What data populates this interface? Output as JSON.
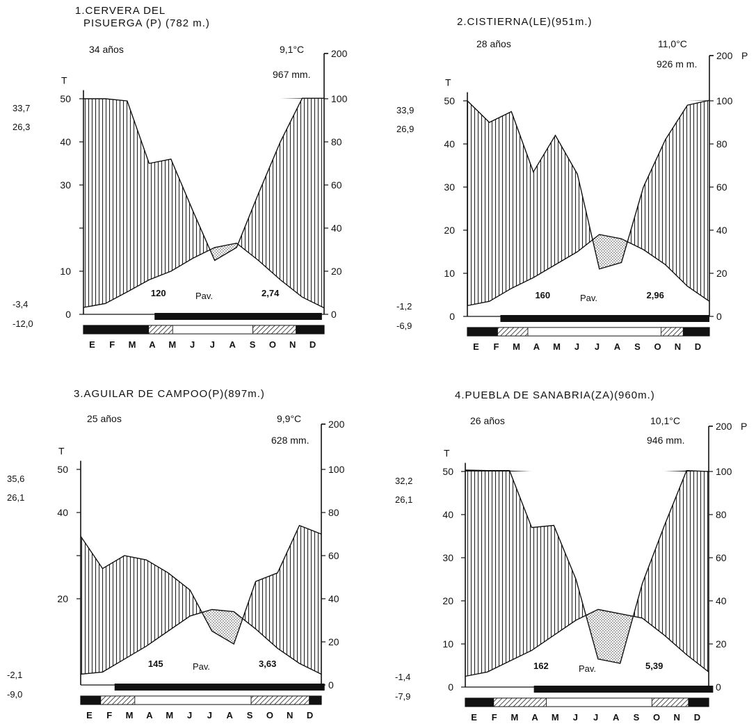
{
  "chart_data": [
    {
      "type": "area",
      "title": "1.CERVERA DEL PISUERGA (P) (782 m.)",
      "title_lines": [
        "1.CERVERA DEL",
        "PISUERGA (P) (782 m.)"
      ],
      "years": "34 años",
      "mean_temp": "9,1°C",
      "annual_precip": "967 mm.",
      "side_values": [
        "33,7",
        "26,3",
        "-3,4",
        "-12,0"
      ],
      "left_axis": {
        "label": "T",
        "ticks": [
          "0",
          "10",
          "",
          "30",
          "40",
          "50"
        ]
      },
      "right_axis": {
        "ticks": [
          "0",
          "20",
          "40",
          "60",
          "80",
          "100",
          "200"
        ]
      },
      "x": [
        "E",
        "F",
        "M",
        "A",
        "M",
        "J",
        "J",
        "A",
        "S",
        "O",
        "N",
        "D"
      ],
      "temperature": [
        1.6,
        2.5,
        5.2,
        8.0,
        10.0,
        13.0,
        15.5,
        16.5,
        12.5,
        8.0,
        4.0,
        1.5
      ],
      "precipitation": [
        100,
        100,
        99,
        70,
        72,
        48,
        25,
        31,
        56,
        80,
        101,
        101
      ],
      "pav_label": "Pav.",
      "pav_values": [
        "120",
        "2,74"
      ],
      "frost_bar": [
        3.25,
        10.9
      ],
      "months_bar": [
        {
          "start": 0,
          "end": 3.25,
          "fill": "black"
        },
        {
          "start": 3.25,
          "end": 4.45,
          "fill": "hatch"
        },
        {
          "start": 4.45,
          "end": 8.45,
          "fill": "white"
        },
        {
          "start": 8.45,
          "end": 10.6,
          "fill": "hatch"
        },
        {
          "start": 10.6,
          "end": 12,
          "fill": "black"
        }
      ]
    },
    {
      "type": "area",
      "title": "2.CISTIERNA (LE) (951 m.)",
      "title_lines": [
        "2.CISTIERNA(LE)(951m.)"
      ],
      "years": "28 años",
      "mean_temp": "11,0°C",
      "annual_precip": "926 m m.",
      "side_values": [
        "33,9",
        "26,9",
        "-1,2",
        "-6,9"
      ],
      "left_axis": {
        "label": "T",
        "ticks": [
          "0",
          "10",
          "20",
          "30",
          "40",
          "50"
        ]
      },
      "right_axis": {
        "label": "P",
        "ticks": [
          "0",
          "20",
          "40",
          "60",
          "80",
          "100",
          "200"
        ]
      },
      "x": [
        "E",
        "F",
        "M",
        "A",
        "M",
        "J",
        "J",
        "A",
        "S",
        "O",
        "N",
        "D"
      ],
      "temperature": [
        2.5,
        3.5,
        6.5,
        9.0,
        12.0,
        15.0,
        19.0,
        18.0,
        15.5,
        12.0,
        7.0,
        3.5
      ],
      "precipitation": [
        100,
        90,
        95,
        67,
        84,
        66,
        22,
        25,
        60,
        82,
        98,
        101
      ],
      "pav_label": "Pav.",
      "pav_values": [
        "160",
        "2,96"
      ],
      "frost_bar": [
        1.5,
        11.0
      ],
      "months_bar": [
        {
          "start": 0,
          "end": 1.5,
          "fill": "black"
        },
        {
          "start": 1.5,
          "end": 3.0,
          "fill": "hatch"
        },
        {
          "start": 3.0,
          "end": 9.6,
          "fill": "white"
        },
        {
          "start": 9.6,
          "end": 10.7,
          "fill": "hatch"
        },
        {
          "start": 10.7,
          "end": 12,
          "fill": "black"
        }
      ]
    },
    {
      "type": "area",
      "title": "3.AGUILAR DE CAMPOO (P) (897 m.)",
      "title_lines": [
        "3.AGUILAR DE CAMPOO(P)(897m.)"
      ],
      "years": "25 años",
      "mean_temp": "9,9°C",
      "annual_precip": "628 mm.",
      "side_values": [
        "35,6",
        "26,1",
        "-2,1",
        "-9,0"
      ],
      "left_axis": {
        "label": "T",
        "ticks": [
          "20",
          "",
          "40",
          "50"
        ]
      },
      "right_axis": {
        "ticks": [
          "0",
          "20",
          "40",
          "60",
          "80",
          "100",
          "200"
        ]
      },
      "x": [
        "E",
        "F",
        "M",
        "A",
        "M",
        "J",
        "J",
        "A",
        "S",
        "O",
        "N",
        "D"
      ],
      "temperature": [
        2.5,
        3.0,
        6.0,
        9.0,
        12.5,
        16.0,
        17.5,
        17.0,
        13.0,
        8.5,
        5.0,
        2.5
      ],
      "precipitation": [
        69,
        54,
        60,
        58,
        52,
        44,
        25,
        19,
        48,
        52,
        74,
        70
      ],
      "pav_label": "Pav.",
      "pav_values": [
        "145",
        "3,63"
      ],
      "frost_bar": [
        1.55,
        11.15
      ],
      "months_bar": [
        {
          "start": 0,
          "end": 1.0,
          "fill": "black"
        },
        {
          "start": 1.0,
          "end": 2.7,
          "fill": "hatch"
        },
        {
          "start": 2.7,
          "end": 8.5,
          "fill": "white"
        },
        {
          "start": 8.5,
          "end": 11.4,
          "fill": "hatch"
        },
        {
          "start": 11.4,
          "end": 12,
          "fill": "black"
        }
      ]
    },
    {
      "type": "area",
      "title": "4.PUEBLA DE SANABRIA (ZA) (960 m.)",
      "title_lines": [
        "4.PUEBLA DE SANABRIA(ZA)(960m.)"
      ],
      "years": "26 años",
      "mean_temp": "10,1°C",
      "annual_precip": "946 mm.",
      "side_values": [
        "32,2",
        "26,1",
        "-1,4",
        "-7,9"
      ],
      "left_axis": {
        "label": "T",
        "ticks": [
          "0",
          "10",
          "20",
          "30",
          "40",
          "50"
        ]
      },
      "right_axis": {
        "label": "P",
        "ticks": [
          "0",
          "20",
          "40",
          "60",
          "80",
          "100",
          "200"
        ]
      },
      "x": [
        "E",
        "F",
        "M",
        "A",
        "M",
        "J",
        "J",
        "A",
        "S",
        "O",
        "N",
        "D"
      ],
      "temperature": [
        2.5,
        3.5,
        6.0,
        8.5,
        12.0,
        15.5,
        18.0,
        17.0,
        16.0,
        12.0,
        7.5,
        3.5
      ],
      "precipitation": [
        103,
        102,
        102,
        74,
        75,
        50,
        13,
        11,
        48,
        75,
        102,
        100
      ],
      "pav_label": "Pav.",
      "pav_values": [
        "162",
        "5,39"
      ],
      "frost_bar": [
        3.1,
        11.2
      ],
      "months_bar": [
        {
          "start": 0,
          "end": 1.4,
          "fill": "black"
        },
        {
          "start": 1.4,
          "end": 4.0,
          "fill": "hatch"
        },
        {
          "start": 4.0,
          "end": 9.2,
          "fill": "white"
        },
        {
          "start": 9.2,
          "end": 11.0,
          "fill": "hatch"
        },
        {
          "start": 11.0,
          "end": 12,
          "fill": "black"
        }
      ]
    }
  ]
}
